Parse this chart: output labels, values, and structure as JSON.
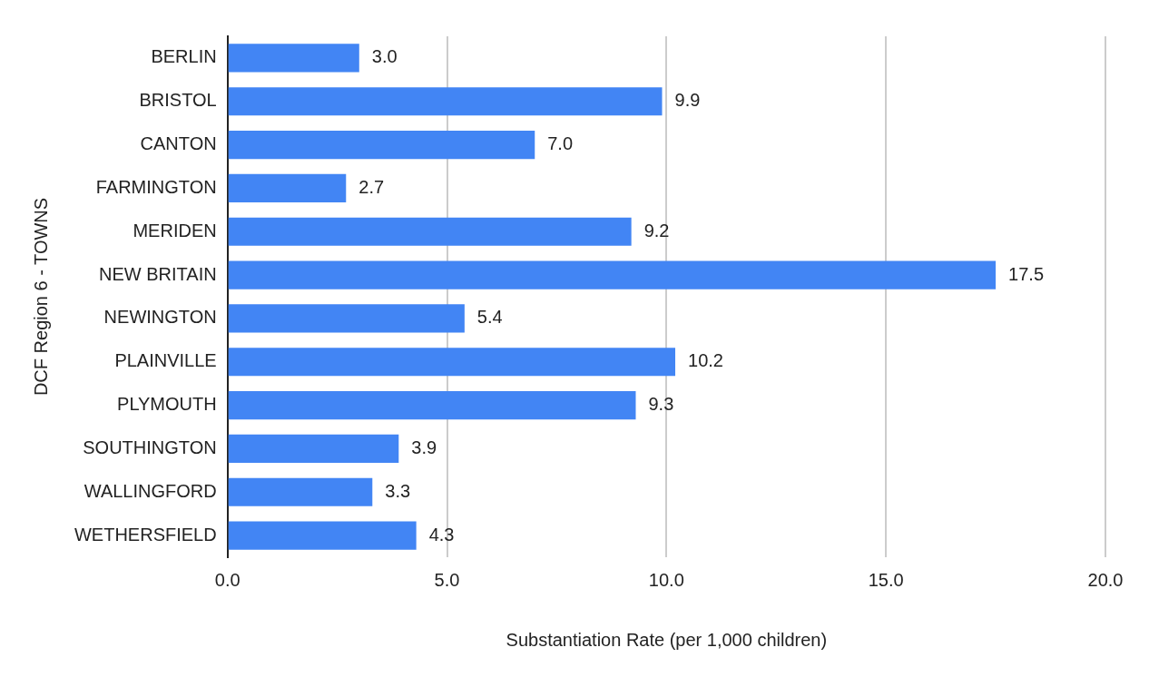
{
  "chart_data": {
    "type": "bar",
    "orientation": "horizontal",
    "xlabel": "Substantiation Rate (per 1,000 children)",
    "ylabel": "DCF Region 6 - TOWNS",
    "categories": [
      "BERLIN",
      "BRISTOL",
      "CANTON",
      "FARMINGTON",
      "MERIDEN",
      "NEW BRITAIN",
      "NEWINGTON",
      "PLAINVILLE",
      "PLYMOUTH",
      "SOUTHINGTON",
      "WALLINGFORD",
      "WETHERSFIELD"
    ],
    "values": [
      3.0,
      9.9,
      7.0,
      2.7,
      9.2,
      17.5,
      5.4,
      10.2,
      9.3,
      3.9,
      3.3,
      4.3
    ],
    "value_labels": [
      "3.0",
      "9.9",
      "7.0",
      "2.7",
      "9.2",
      "17.5",
      "5.4",
      "10.2",
      "9.3",
      "3.9",
      "3.3",
      "4.3"
    ],
    "color": "#4285f4",
    "xlim": [
      0,
      20
    ],
    "xticks": [
      {
        "value": 0,
        "label": "0.0"
      },
      {
        "value": 5,
        "label": "5.0"
      },
      {
        "value": 10,
        "label": "10.0"
      },
      {
        "value": 15,
        "label": "15.0"
      },
      {
        "value": 20,
        "label": "20.0"
      }
    ],
    "grid": "x",
    "legend": false
  }
}
